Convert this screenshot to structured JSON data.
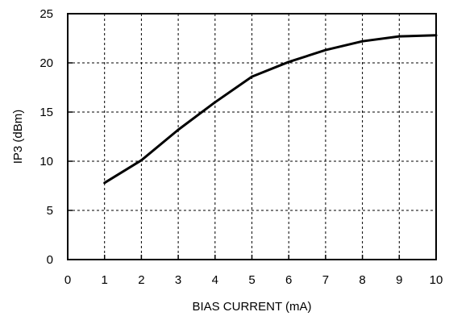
{
  "chart_data": {
    "type": "line",
    "title": "",
    "xlabel": "BIAS CURRENT (mA)",
    "ylabel": "IP3 (dBm)",
    "xlim": [
      0,
      10
    ],
    "ylim": [
      0,
      25
    ],
    "x_ticks": [
      0,
      1,
      2,
      3,
      4,
      5,
      6,
      7,
      8,
      9,
      10
    ],
    "y_ticks": [
      0,
      5,
      10,
      15,
      20,
      25
    ],
    "grid": true,
    "grid_style": "dashed",
    "series": [
      {
        "x": [
          1,
          2,
          3,
          4,
          5,
          6,
          7,
          8,
          9,
          10
        ],
        "y": [
          7.8,
          10.1,
          13.2,
          16.0,
          18.6,
          20.1,
          21.3,
          22.2,
          22.7,
          22.8
        ]
      }
    ],
    "colors": {
      "line": "#000000",
      "grid": "#000000",
      "frame": "#000000"
    }
  }
}
